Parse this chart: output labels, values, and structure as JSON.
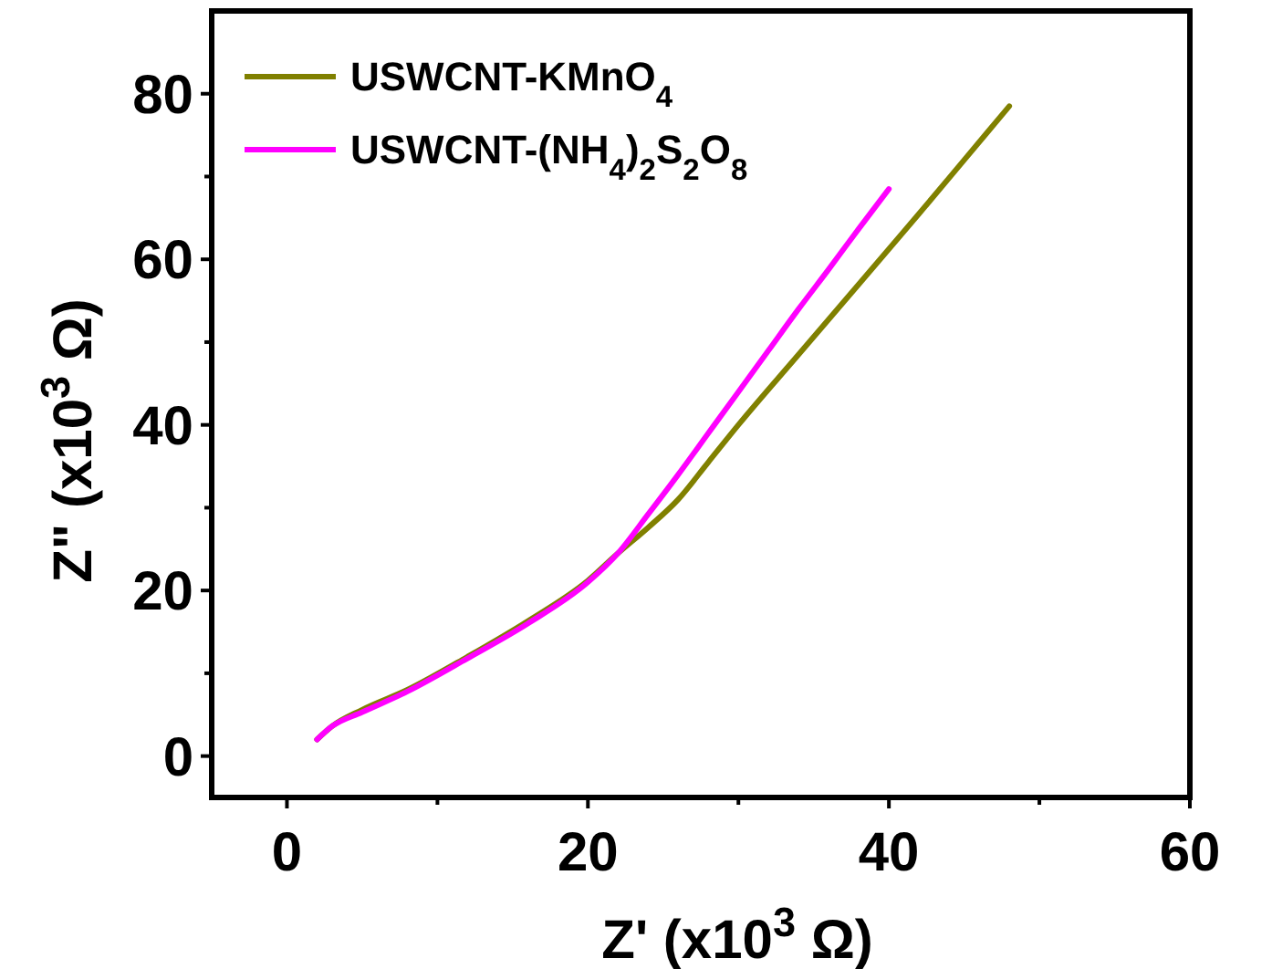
{
  "chart_data": {
    "type": "line",
    "xlabel": "Z' (x10$^{3}$ Ω)",
    "ylabel": "Z\" (x10$^{3}$ Ω)",
    "xlim": [
      -5,
      60
    ],
    "ylim": [
      -5,
      90
    ],
    "xticks": [
      0,
      20,
      40,
      60
    ],
    "yticks": [
      0,
      20,
      40,
      60,
      80
    ],
    "grid": false,
    "legend": "top left",
    "line_style": "solid",
    "series": [
      {
        "name": "USWCNT-KMnO$_{4}$",
        "color": "#808000",
        "x": [
          2,
          3,
          5,
          8,
          12,
          16,
          20,
          22,
          24,
          26,
          28,
          30,
          34,
          38,
          42,
          45,
          48
        ],
        "values": [
          2,
          3.6,
          5.6,
          8,
          12,
          16.3,
          21.2,
          24.5,
          27.6,
          31,
          35.5,
          40,
          48.5,
          57,
          65.5,
          72,
          78.5
        ]
      },
      {
        "name": "USWCNT-(NH$_{4}$)$_{2}$S$_{2}$O$_{8}$",
        "color": "#ff00ff",
        "x": [
          2,
          3,
          5,
          8,
          12,
          16,
          20,
          22,
          24,
          26,
          28,
          30,
          32,
          34,
          36,
          38,
          40
        ],
        "values": [
          2,
          3.6,
          5.3,
          7.8,
          11.8,
          16,
          21,
          24.5,
          29.2,
          34,
          39,
          44,
          49,
          54,
          58.8,
          63.7,
          68.5
        ]
      }
    ]
  }
}
